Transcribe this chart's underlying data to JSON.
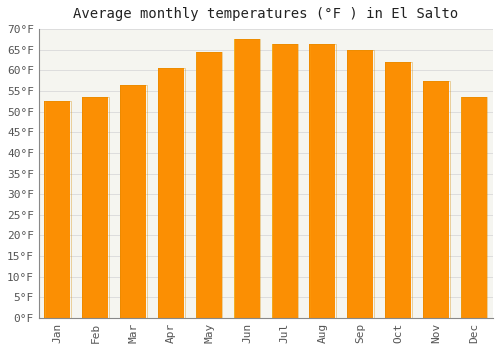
{
  "title": "Average monthly temperatures (°F ) in El Salto",
  "months": [
    "Jan",
    "Feb",
    "Mar",
    "Apr",
    "May",
    "Jun",
    "Jul",
    "Aug",
    "Sep",
    "Oct",
    "Nov",
    "Dec"
  ],
  "values": [
    52.5,
    53.5,
    56.5,
    60.5,
    64.5,
    67.5,
    66.5,
    66.5,
    65.0,
    62.0,
    57.5,
    53.5
  ],
  "bar_color_center": "#FFD54F",
  "bar_color_edge": "#FB8C00",
  "background_color": "#FFFFFF",
  "plot_bg_color": "#F5F5F0",
  "grid_color": "#DDDDDD",
  "text_color": "#555555",
  "title_fontsize": 10,
  "tick_fontsize": 8,
  "ylim": [
    0,
    70
  ],
  "yticks": [
    0,
    5,
    10,
    15,
    20,
    25,
    30,
    35,
    40,
    45,
    50,
    55,
    60,
    65,
    70
  ]
}
